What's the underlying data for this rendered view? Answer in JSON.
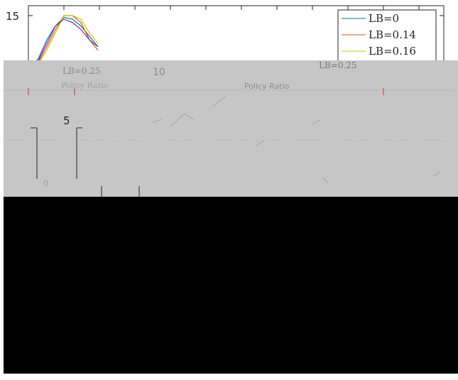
{
  "chart_data": {
    "type": "line",
    "title": "",
    "xlabel": "",
    "ylabel": "",
    "ylim": [
      0,
      15
    ],
    "y_ticks": [
      5,
      10,
      15
    ],
    "tick_labels": {
      "top_y": "15",
      "mid_y": "10",
      "low_y": "5",
      "zero_y": "0"
    },
    "annotations": {
      "panel_lb_label": "LB=0.25",
      "right_lb_label": "LB=0.25",
      "axis_phrase_left": "Policy Ratio",
      "axis_phrase_center": "Policy Ratio"
    },
    "legend_position": "top-right",
    "series": [
      {
        "name": "LB=0",
        "color": "#0072bd",
        "points": [
          [
            0,
            0.2
          ],
          [
            0.02,
            2.5
          ],
          [
            0.04,
            8
          ],
          [
            0.06,
            12
          ],
          [
            0.08,
            14.5
          ],
          [
            0.1,
            14
          ],
          [
            0.12,
            12
          ],
          [
            0.14,
            9
          ],
          [
            0.16,
            6
          ]
        ]
      },
      {
        "name": "LB=0.14",
        "color": "#d95319",
        "points": [
          [
            0,
            0
          ],
          [
            0.02,
            1.5
          ],
          [
            0.04,
            6
          ],
          [
            0.06,
            11
          ],
          [
            0.08,
            15
          ],
          [
            0.1,
            15
          ],
          [
            0.12,
            13
          ],
          [
            0.14,
            8
          ],
          [
            0.16,
            5
          ]
        ]
      },
      {
        "name": "LB=0.16",
        "color": "#c8c800",
        "points": [
          [
            0,
            0
          ],
          [
            0.02,
            1
          ],
          [
            0.04,
            5
          ],
          [
            0.06,
            10
          ],
          [
            0.08,
            15
          ],
          [
            0.1,
            15
          ],
          [
            0.12,
            14
          ],
          [
            0.14,
            10
          ],
          [
            0.16,
            7
          ]
        ]
      },
      {
        "name": "",
        "color": "#7e2f8e",
        "points": [
          [
            0,
            0
          ],
          [
            0.02,
            2
          ],
          [
            0.04,
            7
          ],
          [
            0.06,
            12
          ],
          [
            0.08,
            14
          ],
          [
            0.1,
            13
          ],
          [
            0.12,
            11
          ],
          [
            0.14,
            8
          ],
          [
            0.16,
            6
          ]
        ]
      }
    ]
  },
  "legend": {
    "items": [
      {
        "label": "LB=0",
        "color": "#0072bd"
      },
      {
        "label": "LB=0.14",
        "color": "#d95319"
      },
      {
        "label": "LB=0.16",
        "color": "#c8c800"
      }
    ]
  },
  "colors": {
    "gray_panel": "#c6c6c6",
    "black_block": "#000000"
  }
}
